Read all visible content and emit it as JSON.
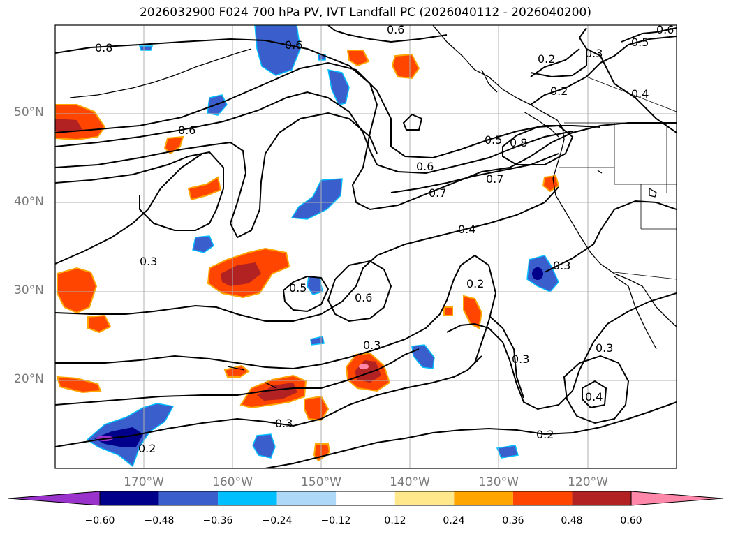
{
  "title": "2026032900 F024 700 hPa PV, IVT Landfall PC (2026040112 - 2026040200)",
  "lat_labels": [
    "50°N",
    "40°N",
    "30°N",
    "20°N"
  ],
  "lon_labels": [
    "170°W",
    "160°W",
    "150°W",
    "140°W",
    "130°W",
    "120°W"
  ],
  "colorbar": {
    "ticks": [
      "−0.60",
      "−0.48",
      "−0.36",
      "−0.24",
      "−0.12",
      "0.12",
      "0.24",
      "0.36",
      "0.48",
      "0.60"
    ],
    "colors": [
      "#9933cc",
      "#00008b",
      "#3a5fcd",
      "#00bfff",
      "#add8f7",
      "#ffffff",
      "#ffe88c",
      "#ffa500",
      "#ff4500",
      "#b22222",
      "#ff88aa"
    ]
  },
  "contour_labels": {
    "c1": "0.8",
    "c2": "0.6",
    "c3": "0.6",
    "c4": "0.5",
    "c5": "0.2",
    "c6": "0.3",
    "c7": "0.2",
    "c8": "0.4",
    "c9": "0.6",
    "c10": "0.5",
    "c11": "0.8",
    "c12": "0.6",
    "c13": "0.7",
    "c14": "0.7",
    "c15": "0.4",
    "c16": "0.3",
    "c17": "0.5",
    "c18": "0.6",
    "c19": "0.3",
    "c20": "0.2",
    "c21": "0.3",
    "c22": "0.3",
    "c23": "0.3",
    "c24": "0.3",
    "c25": "0.4",
    "c26": "0.2",
    "c27": "0.2",
    "c28": "0.6"
  }
}
